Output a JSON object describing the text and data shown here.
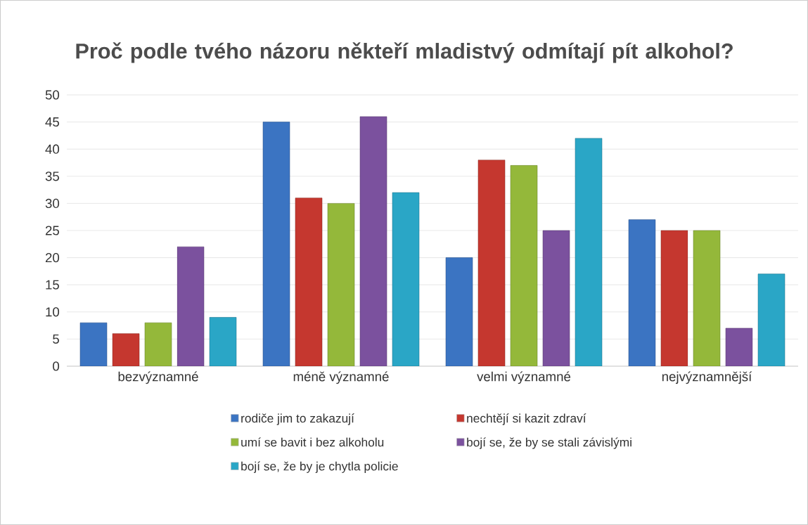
{
  "chart_data": {
    "type": "bar",
    "title": "Proč podle tvého názoru někteří mladistvý odmítají pít alkohol?",
    "categories": [
      "bezvýznamné",
      "méně významné",
      "velmi významné",
      "nejvýznamnější"
    ],
    "series": [
      {
        "name": "rodiče jim to zakazují",
        "color": "#3b74c2",
        "values": [
          8,
          45,
          20,
          27
        ]
      },
      {
        "name": "nechtějí si kazit zdraví",
        "color": "#c5372f",
        "values": [
          6,
          31,
          38,
          25
        ]
      },
      {
        "name": "umí se bavit i bez alkoholu",
        "color": "#94b83a",
        "values": [
          8,
          30,
          37,
          25
        ]
      },
      {
        "name": "bojí se, že by se stali závislými",
        "color": "#7b519e",
        "values": [
          22,
          46,
          25,
          7
        ]
      },
      {
        "name": "bojí se, že by je chytla policie",
        "color": "#2aa6c6",
        "values": [
          9,
          32,
          42,
          17
        ]
      }
    ],
    "ylim": [
      0,
      50
    ],
    "yticks": [
      0,
      5,
      10,
      15,
      20,
      25,
      30,
      35,
      40,
      45,
      50
    ],
    "grid": "y",
    "legend": "bottom"
  }
}
